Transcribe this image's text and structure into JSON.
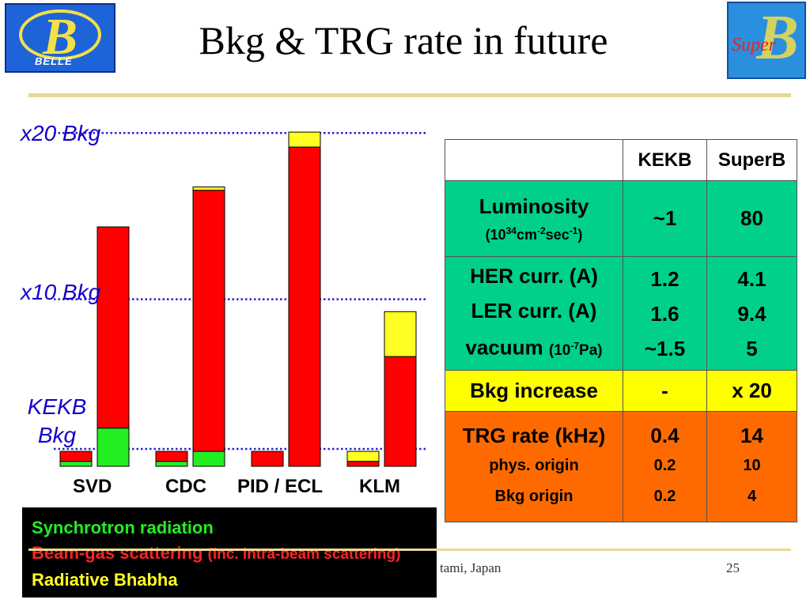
{
  "title": "Bkg & TRG rate in future",
  "logos": {
    "left_text": "BELLE",
    "right_text": "Super"
  },
  "chart_data": {
    "type": "bar",
    "stacked": true,
    "categories": [
      "SVD",
      "CDC",
      "PID / ECL",
      "KLM"
    ],
    "groups": [
      {
        "category": "SVD",
        "bars": [
          {
            "stack": [
              {
                "series": "green",
                "value": 0.3
              },
              {
                "series": "red",
                "value": 0.6
              },
              {
                "series": "yellow",
                "value": 0
              }
            ]
          },
          {
            "stack": [
              {
                "series": "green",
                "value": 2.3
              },
              {
                "series": "red",
                "value": 12.1
              },
              {
                "series": "yellow",
                "value": 0
              }
            ]
          }
        ]
      },
      {
        "category": "CDC",
        "bars": [
          {
            "stack": [
              {
                "series": "green",
                "value": 0.3
              },
              {
                "series": "red",
                "value": 0.6
              },
              {
                "series": "yellow",
                "value": 0
              }
            ]
          },
          {
            "stack": [
              {
                "series": "green",
                "value": 0.9
              },
              {
                "series": "red",
                "value": 15.7
              },
              {
                "series": "yellow",
                "value": 0.2
              }
            ]
          }
        ]
      },
      {
        "category": "PID / ECL",
        "bars": [
          {
            "stack": [
              {
                "series": "green",
                "value": 0
              },
              {
                "series": "red",
                "value": 0.9
              },
              {
                "series": "yellow",
                "value": 0
              }
            ]
          },
          {
            "stack": [
              {
                "series": "green",
                "value": 0
              },
              {
                "series": "red",
                "value": 19.2
              },
              {
                "series": "yellow",
                "value": 0.9
              }
            ]
          }
        ]
      },
      {
        "category": "KLM",
        "bars": [
          {
            "stack": [
              {
                "series": "green",
                "value": 0
              },
              {
                "series": "red",
                "value": 0.3
              },
              {
                "series": "yellow",
                "value": 0.6
              }
            ]
          },
          {
            "stack": [
              {
                "series": "green",
                "value": 0
              },
              {
                "series": "red",
                "value": 6.6
              },
              {
                "series": "yellow",
                "value": 2.7
              }
            ]
          }
        ]
      }
    ],
    "reference_lines": [
      {
        "label": "KEKB Bkg",
        "value": 1
      },
      {
        "label": "x10 Bkg",
        "value": 10
      },
      {
        "label": "x20 Bkg",
        "value": 20
      }
    ],
    "ylim": [
      0,
      20.2
    ],
    "colors": {
      "green": "#22ee22",
      "red": "#ff0000",
      "yellow": "#ffff22",
      "reference": "#2222cc"
    },
    "legend": {
      "placement": "bottom-left",
      "items": [
        {
          "text": "Synchrotron radiation",
          "color": "#22ee22"
        },
        {
          "text": "Beam-gas scattering",
          "note": "(inc. intra-beam scattering)",
          "color": "#ff2222"
        },
        {
          "text": "Radiative Bhabha",
          "color": "#ffff22"
        }
      ]
    }
  },
  "table": {
    "header": [
      "",
      "KEKB",
      "SuperB"
    ],
    "colors": {
      "header": "#ffffff",
      "green": "#00d08c",
      "yellow": "#ffff00",
      "orange": "#ff6a00"
    },
    "luminosity": {
      "label": "Luminosity",
      "unit_pre": "(10",
      "unit_sup1": "34",
      "unit_mid": "cm",
      "unit_sup2": "-2",
      "unit_mid2": "sec",
      "unit_sup3": "-1",
      "unit_post": ")",
      "kekb": "~1",
      "superb": "80"
    },
    "her": {
      "label": "HER curr. (A)",
      "kekb": "1.2",
      "superb": "4.1"
    },
    "ler": {
      "label": "LER curr. (A)",
      "kekb": "1.6",
      "superb": "9.4"
    },
    "vacuum": {
      "label": "vacuum",
      "unit_pre": "(10",
      "unit_sup": "-7",
      "unit_post": "Pa)",
      "kekb": "~1.5",
      "superb": "5"
    },
    "bkg": {
      "label": "Bkg increase",
      "kekb": "-",
      "superb": "x 20"
    },
    "trg": {
      "label": "TRG rate (kHz)",
      "kekb": "0.4",
      "superb": "14"
    },
    "phys": {
      "label": "phys. origin",
      "kekb": "0.2",
      "superb": "10"
    },
    "bkgorigin": {
      "label": "Bkg origin",
      "kekb": "0.2",
      "superb": "4"
    }
  },
  "footer": {
    "location": "tami, Japan",
    "page": "25"
  }
}
